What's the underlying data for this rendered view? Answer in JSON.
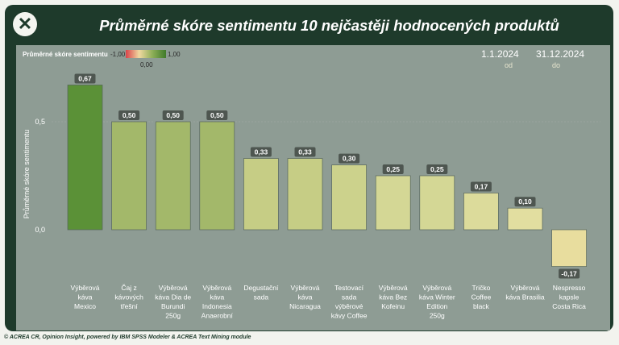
{
  "title": "Průměrné skóre sentimentu 10 nejčastěji hodnocených produktů",
  "legend": {
    "title": "Průměrné skóre sentimentu",
    "min": "-1,00",
    "mid": "0,00",
    "max": "1,00"
  },
  "date_from": {
    "value": "1.1.2024",
    "label": "od"
  },
  "date_to": {
    "value": "31.12.2024",
    "label": "do"
  },
  "footer": "© ACREA CR, Opinion Insight, powered by IBM SPSS Modeler & ACREA Text Mining module",
  "colors": {
    "card": "#1e3a2b",
    "panel": "#8e9c94"
  },
  "chart_data": {
    "type": "bar",
    "ylabel": "Průměrné skóre sentimentu",
    "yticks": [
      {
        "value": 0.5,
        "label": "0,5"
      },
      {
        "value": 0,
        "label": "0,0"
      }
    ],
    "ylim": [
      -0.2,
      0.7
    ],
    "grid": false,
    "categories": [
      [
        "Výběrová",
        "káva",
        "Mexico"
      ],
      [
        "Čaj z",
        "kávových",
        "třešní"
      ],
      [
        "Výběrová",
        "káva Dia de",
        "Burundi",
        "250g"
      ],
      [
        "Výběrová",
        "káva",
        "Indonesia",
        "Anaerobní"
      ],
      [
        "Degustační",
        "sada"
      ],
      [
        "Výběrová",
        "káva",
        "Nicaragua"
      ],
      [
        "Testovací",
        "sada",
        "výběrové",
        "kávy Coffee"
      ],
      [
        "Výběrová",
        "káva Bez",
        "Kofeinu"
      ],
      [
        "Výběrová",
        "káva Winter",
        "Edition",
        "250g"
      ],
      [
        "Tričko",
        "Coffee",
        "black"
      ],
      [
        "Výběrová",
        "káva Brasilia"
      ],
      [
        "Nespresso",
        "kapsle",
        "Costa Rica"
      ]
    ],
    "values": [
      0.67,
      0.5,
      0.5,
      0.5,
      0.33,
      0.33,
      0.3,
      0.25,
      0.25,
      0.17,
      0.1,
      -0.17
    ],
    "value_labels": [
      "0,67",
      "0,50",
      "0,50",
      "0,50",
      "0,33",
      "0,33",
      "0,30",
      "0,25",
      "0,25",
      "0,17",
      "0,10",
      "-0,17"
    ],
    "bar_colors": [
      "#5b9137",
      "#a3b86a",
      "#a3b86a",
      "#a3b86a",
      "#c6cd85",
      "#c6cd85",
      "#ccd28c",
      "#d4d795",
      "#d4d795",
      "#dcdb9b",
      "#e2dea0",
      "#e8dd9e"
    ]
  }
}
